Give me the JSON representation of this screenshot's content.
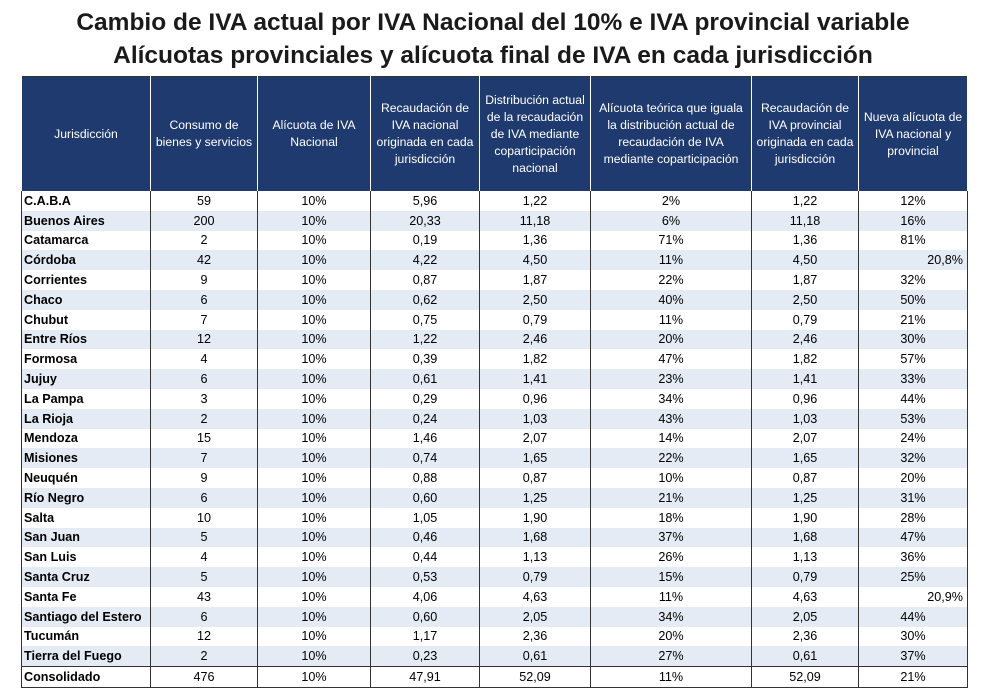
{
  "title_line1": "Cambio de IVA actual por IVA Nacional del 10% e IVA provincial variable",
  "title_line2": "Alícuotas provinciales y alícuota final de IVA en cada jurisdicción",
  "headers": [
    "Jurisdicción",
    "Consumo de bienes y servicios",
    "Alícuota de IVA Nacional",
    "Recaudación de IVA nacional originada en cada jurisdicción",
    "Distribución actual de la recaudación de IVA mediante coparticipación nacional",
    "Alícuota teórica que iguala la distribución actual de recaudación de IVA mediante coparticipación",
    "Recaudación de IVA provincial originada en cada jurisdicción",
    "Nueva alícuota de IVA nacional y provincial"
  ],
  "rows": [
    [
      "C.A.B.A",
      "59",
      "10%",
      "5,96",
      "1,22",
      "2%",
      "1,22",
      "12%"
    ],
    [
      "Buenos Aires",
      "200",
      "10%",
      "20,33",
      "11,18",
      "6%",
      "11,18",
      "16%"
    ],
    [
      "Catamarca",
      "2",
      "10%",
      "0,19",
      "1,36",
      "71%",
      "1,36",
      "81%"
    ],
    [
      "Córdoba",
      "42",
      "10%",
      "4,22",
      "4,50",
      "11%",
      "4,50",
      "20,8%"
    ],
    [
      "Corrientes",
      "9",
      "10%",
      "0,87",
      "1,87",
      "22%",
      "1,87",
      "32%"
    ],
    [
      "Chaco",
      "6",
      "10%",
      "0,62",
      "2,50",
      "40%",
      "2,50",
      "50%"
    ],
    [
      "Chubut",
      "7",
      "10%",
      "0,75",
      "0,79",
      "11%",
      "0,79",
      "21%"
    ],
    [
      "Entre Ríos",
      "12",
      "10%",
      "1,22",
      "2,46",
      "20%",
      "2,46",
      "30%"
    ],
    [
      "Formosa",
      "4",
      "10%",
      "0,39",
      "1,82",
      "47%",
      "1,82",
      "57%"
    ],
    [
      "Jujuy",
      "6",
      "10%",
      "0,61",
      "1,41",
      "23%",
      "1,41",
      "33%"
    ],
    [
      "La Pampa",
      "3",
      "10%",
      "0,29",
      "0,96",
      "34%",
      "0,96",
      "44%"
    ],
    [
      "La Rioja",
      "2",
      "10%",
      "0,24",
      "1,03",
      "43%",
      "1,03",
      "53%"
    ],
    [
      "Mendoza",
      "15",
      "10%",
      "1,46",
      "2,07",
      "14%",
      "2,07",
      "24%"
    ],
    [
      "Misiones",
      "7",
      "10%",
      "0,74",
      "1,65",
      "22%",
      "1,65",
      "32%"
    ],
    [
      "Neuquén",
      "9",
      "10%",
      "0,88",
      "0,87",
      "10%",
      "0,87",
      "20%"
    ],
    [
      "Río Negro",
      "6",
      "10%",
      "0,60",
      "1,25",
      "21%",
      "1,25",
      "31%"
    ],
    [
      "Salta",
      "10",
      "10%",
      "1,05",
      "1,90",
      "18%",
      "1,90",
      "28%"
    ],
    [
      "San Juan",
      "5",
      "10%",
      "0,46",
      "1,68",
      "37%",
      "1,68",
      "47%"
    ],
    [
      "San Luis",
      "4",
      "10%",
      "0,44",
      "1,13",
      "26%",
      "1,13",
      "36%"
    ],
    [
      "Santa Cruz",
      "5",
      "10%",
      "0,53",
      "0,79",
      "15%",
      "0,79",
      "25%"
    ],
    [
      "Santa Fe",
      "43",
      "10%",
      "4,06",
      "4,63",
      "11%",
      "4,63",
      "20,9%"
    ],
    [
      "Santiago del Estero",
      "6",
      "10%",
      "0,60",
      "2,05",
      "34%",
      "2,05",
      "44%"
    ],
    [
      "Tucumán",
      "12",
      "10%",
      "1,17",
      "2,36",
      "20%",
      "2,36",
      "30%"
    ],
    [
      "Tierra del Fuego",
      "2",
      "10%",
      "0,23",
      "0,61",
      "27%",
      "0,61",
      "37%"
    ]
  ],
  "total": [
    "Consolidado",
    "476",
    "10%",
    "47,91",
    "52,09",
    "11%",
    "52,09",
    "21%"
  ]
}
